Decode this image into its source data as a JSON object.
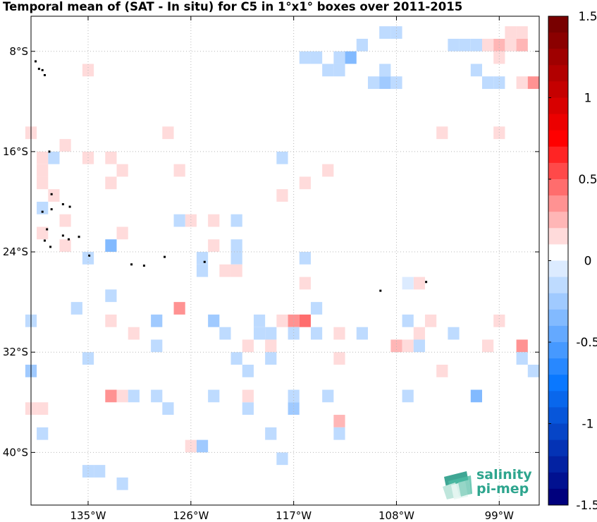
{
  "chart_data": {
    "type": "heatmap",
    "title": "Temporal mean of (SAT - In situ) for C5 in 1°x1° boxes over 2011-2015",
    "x_ticks": [
      {
        "lon": -135,
        "label": "135°W"
      },
      {
        "lon": -126,
        "label": "126°W"
      },
      {
        "lon": -117,
        "label": "117°W"
      },
      {
        "lon": -108,
        "label": "108°W"
      },
      {
        "lon": -99,
        "label": "99°W"
      }
    ],
    "y_ticks": [
      {
        "lat": -8,
        "label": "8°S"
      },
      {
        "lat": -16,
        "label": "16°S"
      },
      {
        "lat": -24,
        "label": "24°S"
      },
      {
        "lat": -32,
        "label": "32°S"
      },
      {
        "lat": -40,
        "label": "40°S"
      }
    ],
    "xlim": [
      -140,
      -95.5
    ],
    "ylim": [
      -44.2,
      -5.2
    ],
    "grid": true,
    "colorbar": {
      "range": [
        -1.5,
        1.5
      ],
      "ticks": [
        "1.5",
        "1",
        "0.5",
        "0",
        "-0.5",
        "-1",
        "-1.5"
      ],
      "levels": 30
    },
    "cells": [
      {
        "lon": -109,
        "lat": -6.5,
        "v": -0.15
      },
      {
        "lon": -108,
        "lat": -6.5,
        "v": -0.12
      },
      {
        "lon": -103,
        "lat": -7.5,
        "v": -0.15
      },
      {
        "lon": -102,
        "lat": -7.5,
        "v": -0.15
      },
      {
        "lon": -101,
        "lat": -7.5,
        "v": -0.12
      },
      {
        "lon": -100,
        "lat": -7.5,
        "v": 0.15
      },
      {
        "lon": -99,
        "lat": -7.5,
        "v": 0.25
      },
      {
        "lon": -98,
        "lat": -6.5,
        "v": 0.15
      },
      {
        "lon": -97,
        "lat": -6.5,
        "v": 0.15
      },
      {
        "lon": -111,
        "lat": -7.5,
        "v": -0.12
      },
      {
        "lon": -112,
        "lat": -8.5,
        "v": -0.35
      },
      {
        "lon": -113,
        "lat": -8.5,
        "v": -0.12
      },
      {
        "lon": -115,
        "lat": -8.5,
        "v": -0.1
      },
      {
        "lon": -99,
        "lat": -8.5,
        "v": 0.15
      },
      {
        "lon": -98,
        "lat": -7.5,
        "v": 0.15
      },
      {
        "lon": -97,
        "lat": -7.5,
        "v": 0.2
      },
      {
        "lon": -116,
        "lat": -8.5,
        "v": -0.12
      },
      {
        "lon": -114,
        "lat": -9.5,
        "v": -0.12
      },
      {
        "lon": -113,
        "lat": -9.5,
        "v": -0.12
      },
      {
        "lon": -110,
        "lat": -10.5,
        "v": -0.1
      },
      {
        "lon": -109,
        "lat": -9.5,
        "v": -0.12
      },
      {
        "lon": -109,
        "lat": -10.5,
        "v": -0.25
      },
      {
        "lon": -108,
        "lat": -10.5,
        "v": -0.1
      },
      {
        "lon": -101,
        "lat": -9.5,
        "v": -0.12
      },
      {
        "lon": -100,
        "lat": -10.5,
        "v": -0.1
      },
      {
        "lon": -99,
        "lat": -10.5,
        "v": -0.1
      },
      {
        "lon": -97,
        "lat": -10.5,
        "v": 0.15
      },
      {
        "lon": -96,
        "lat": -10.5,
        "v": 0.3
      },
      {
        "lon": -135,
        "lat": -9.5,
        "v": 0.15
      },
      {
        "lon": -128,
        "lat": -14.5,
        "v": 0.15
      },
      {
        "lon": -140,
        "lat": -14.5,
        "v": 0.15
      },
      {
        "lon": -137,
        "lat": -15.5,
        "v": 0.15
      },
      {
        "lon": -135,
        "lat": -16.5,
        "v": 0.15
      },
      {
        "lon": -133,
        "lat": -16.5,
        "v": 0.15
      },
      {
        "lon": -132,
        "lat": -17.5,
        "v": 0.15
      },
      {
        "lon": -133,
        "lat": -18.5,
        "v": 0.15
      },
      {
        "lon": -139,
        "lat": -16.5,
        "v": 0.15
      },
      {
        "lon": -138,
        "lat": -16.5,
        "v": -0.1
      },
      {
        "lon": -139,
        "lat": -17.5,
        "v": 0.15
      },
      {
        "lon": -139,
        "lat": -18.5,
        "v": 0.15
      },
      {
        "lon": -138,
        "lat": -19.5,
        "v": 0.15
      },
      {
        "lon": -139,
        "lat": -20.5,
        "v": -0.15
      },
      {
        "lon": -137,
        "lat": -21.5,
        "v": 0.15
      },
      {
        "lon": -139,
        "lat": -22.5,
        "v": 0.15
      },
      {
        "lon": -137,
        "lat": -23.5,
        "v": 0.15
      },
      {
        "lon": -132,
        "lat": -22.5,
        "v": 0.15
      },
      {
        "lon": -133,
        "lat": -23.5,
        "v": -0.3
      },
      {
        "lon": -135,
        "lat": -24.5,
        "v": -0.1
      },
      {
        "lon": -127,
        "lat": -17.5,
        "v": 0.15
      },
      {
        "lon": -126,
        "lat": -21.5,
        "v": 0.15
      },
      {
        "lon": -127,
        "lat": -21.5,
        "v": -0.12
      },
      {
        "lon": -124,
        "lat": -21.5,
        "v": 0.15
      },
      {
        "lon": -124,
        "lat": -23.5,
        "v": 0.15
      },
      {
        "lon": -122,
        "lat": -23.5,
        "v": -0.12
      },
      {
        "lon": -122,
        "lat": -21.5,
        "v": -0.12
      },
      {
        "lon": -125,
        "lat": -24.5,
        "v": -0.1
      },
      {
        "lon": -125,
        "lat": -25.5,
        "v": -0.12
      },
      {
        "lon": -122,
        "lat": -24.5,
        "v": -0.15
      },
      {
        "lon": -123,
        "lat": -25.5,
        "v": 0.15
      },
      {
        "lon": -122,
        "lat": -25.5,
        "v": 0.15
      },
      {
        "lon": -118,
        "lat": -16.5,
        "v": -0.12
      },
      {
        "lon": -118,
        "lat": -19.5,
        "v": 0.15
      },
      {
        "lon": -116,
        "lat": -18.5,
        "v": 0.15
      },
      {
        "lon": -114,
        "lat": -17.5,
        "v": 0.15
      },
      {
        "lon": -116,
        "lat": -24.5,
        "v": -0.12
      },
      {
        "lon": -116,
        "lat": -26.5,
        "v": 0.15
      },
      {
        "lon": -115,
        "lat": -28.5,
        "v": -0.12
      },
      {
        "lon": -104,
        "lat": -14.5,
        "v": 0.15
      },
      {
        "lon": -99,
        "lat": -14.5,
        "v": 0.15
      },
      {
        "lon": -106,
        "lat": -26.5,
        "v": 0.15
      },
      {
        "lon": -107,
        "lat": -26.5,
        "v": -0.05
      },
      {
        "lon": -133,
        "lat": -27.5,
        "v": -0.1
      },
      {
        "lon": -136,
        "lat": -28.5,
        "v": -0.1
      },
      {
        "lon": -140,
        "lat": -29.5,
        "v": -0.1
      },
      {
        "lon": -133,
        "lat": -29.5,
        "v": 0.15
      },
      {
        "lon": -131,
        "lat": -30.5,
        "v": 0.15
      },
      {
        "lon": -129,
        "lat": -29.5,
        "v": -0.25
      },
      {
        "lon": -127,
        "lat": -28.5,
        "v": 0.35
      },
      {
        "lon": -124,
        "lat": -29.5,
        "v": -0.25
      },
      {
        "lon": -123,
        "lat": -30.5,
        "v": -0.12
      },
      {
        "lon": -120,
        "lat": -29.5,
        "v": -0.15
      },
      {
        "lon": -120,
        "lat": -30.5,
        "v": -0.15
      },
      {
        "lon": -119,
        "lat": -30.5,
        "v": -0.12
      },
      {
        "lon": -121,
        "lat": -31.5,
        "v": 0.15
      },
      {
        "lon": -119,
        "lat": -31.5,
        "v": 0.15
      },
      {
        "lon": -129,
        "lat": -31.5,
        "v": -0.12
      },
      {
        "lon": -135,
        "lat": -32.5,
        "v": -0.1
      },
      {
        "lon": -122,
        "lat": -32.5,
        "v": -0.1
      },
      {
        "lon": -121,
        "lat": -33.5,
        "v": -0.1
      },
      {
        "lon": -119,
        "lat": -32.5,
        "v": -0.1
      },
      {
        "lon": -118,
        "lat": -29.5,
        "v": 0.15
      },
      {
        "lon": -117,
        "lat": -29.5,
        "v": 0.3
      },
      {
        "lon": -116,
        "lat": -29.5,
        "v": 0.45
      },
      {
        "lon": -117,
        "lat": -30.5,
        "v": -0.1
      },
      {
        "lon": -115,
        "lat": -30.5,
        "v": -0.1
      },
      {
        "lon": -113,
        "lat": -30.5,
        "v": 0.15
      },
      {
        "lon": -111,
        "lat": -30.5,
        "v": -0.1
      },
      {
        "lon": -113,
        "lat": -32.5,
        "v": 0.15
      },
      {
        "lon": -107,
        "lat": -29.5,
        "v": -0.1
      },
      {
        "lon": -105,
        "lat": -29.5,
        "v": 0.15
      },
      {
        "lon": -106,
        "lat": -30.5,
        "v": 0.15
      },
      {
        "lon": -108,
        "lat": -31.5,
        "v": 0.2
      },
      {
        "lon": -107,
        "lat": -31.5,
        "v": 0.15
      },
      {
        "lon": -106,
        "lat": -31.5,
        "v": -0.1
      },
      {
        "lon": -103,
        "lat": -30.5,
        "v": -0.1
      },
      {
        "lon": -99,
        "lat": -29.5,
        "v": 0.15
      },
      {
        "lon": -100,
        "lat": -31.5,
        "v": 0.15
      },
      {
        "lon": -97,
        "lat": -31.5,
        "v": 0.35
      },
      {
        "lon": -97,
        "lat": -32.5,
        "v": -0.1
      },
      {
        "lon": -96,
        "lat": -33.5,
        "v": -0.1
      },
      {
        "lon": -140,
        "lat": -33.5,
        "v": -0.25
      },
      {
        "lon": -104,
        "lat": -33.5,
        "v": 0.15
      },
      {
        "lon": -133,
        "lat": -35.5,
        "v": 0.3
      },
      {
        "lon": -132,
        "lat": -35.5,
        "v": 0.15
      },
      {
        "lon": -131,
        "lat": -35.5,
        "v": -0.1
      },
      {
        "lon": -129,
        "lat": -35.5,
        "v": -0.1
      },
      {
        "lon": -128,
        "lat": -36.5,
        "v": -0.1
      },
      {
        "lon": -124,
        "lat": -35.5,
        "v": -0.1
      },
      {
        "lon": -121,
        "lat": -36.5,
        "v": -0.1
      },
      {
        "lon": -121,
        "lat": -35.5,
        "v": 0.15
      },
      {
        "lon": -117,
        "lat": -35.5,
        "v": -0.1
      },
      {
        "lon": -117,
        "lat": -36.5,
        "v": -0.25
      },
      {
        "lon": -114,
        "lat": -35.5,
        "v": -0.1
      },
      {
        "lon": -111,
        "lat": -35.5,
        "v": 0.08
      },
      {
        "lon": -107,
        "lat": -35.5,
        "v": -0.1
      },
      {
        "lon": -101,
        "lat": -35.5,
        "v": -0.35
      },
      {
        "lon": -140,
        "lat": -36.5,
        "v": 0.15
      },
      {
        "lon": -139,
        "lat": -36.5,
        "v": 0.15
      },
      {
        "lon": -113,
        "lat": -37.5,
        "v": 0.2
      },
      {
        "lon": -113,
        "lat": -38.5,
        "v": -0.1
      },
      {
        "lon": -139,
        "lat": -38.5,
        "v": -0.1
      },
      {
        "lon": -119,
        "lat": -38.5,
        "v": -0.1
      },
      {
        "lon": -126,
        "lat": -39.5,
        "v": 0.15
      },
      {
        "lon": -125,
        "lat": -39.5,
        "v": -0.25
      },
      {
        "lon": -118,
        "lat": -40.5,
        "v": -0.1
      },
      {
        "lon": -135,
        "lat": -41.5,
        "v": -0.1
      },
      {
        "lon": -134,
        "lat": -41.5,
        "v": -0.1
      },
      {
        "lon": -132,
        "lat": -42.5,
        "v": -0.1
      }
    ],
    "islands": [
      {
        "lon": -139.6,
        "lat": -8.8
      },
      {
        "lon": -139.3,
        "lat": -9.4
      },
      {
        "lon": -139.0,
        "lat": -9.5
      },
      {
        "lon": -138.8,
        "lat": -9.9
      },
      {
        "lon": -138.4,
        "lat": -16.0
      },
      {
        "lon": -138.2,
        "lat": -19.4
      },
      {
        "lon": -137.2,
        "lat": -20.2
      },
      {
        "lon": -136.6,
        "lat": -20.4
      },
      {
        "lon": -139.0,
        "lat": -20.8
      },
      {
        "lon": -138.2,
        "lat": -20.6
      },
      {
        "lon": -138.6,
        "lat": -22.2
      },
      {
        "lon": -137.2,
        "lat": -22.7
      },
      {
        "lon": -136.7,
        "lat": -23.0
      },
      {
        "lon": -135.8,
        "lat": -22.8
      },
      {
        "lon": -138.8,
        "lat": -23.1
      },
      {
        "lon": -138.3,
        "lat": -23.6
      },
      {
        "lon": -134.9,
        "lat": -24.3
      },
      {
        "lon": -130.1,
        "lat": -25.1
      },
      {
        "lon": -128.3,
        "lat": -24.4
      },
      {
        "lon": -124.8,
        "lat": -24.8
      },
      {
        "lon": -109.4,
        "lat": -27.1
      },
      {
        "lon": -105.4,
        "lat": -26.4
      },
      {
        "lon": -131.2,
        "lat": -25.0
      }
    ]
  },
  "logo": {
    "line1": "salinity",
    "line2": "pi-mep"
  }
}
